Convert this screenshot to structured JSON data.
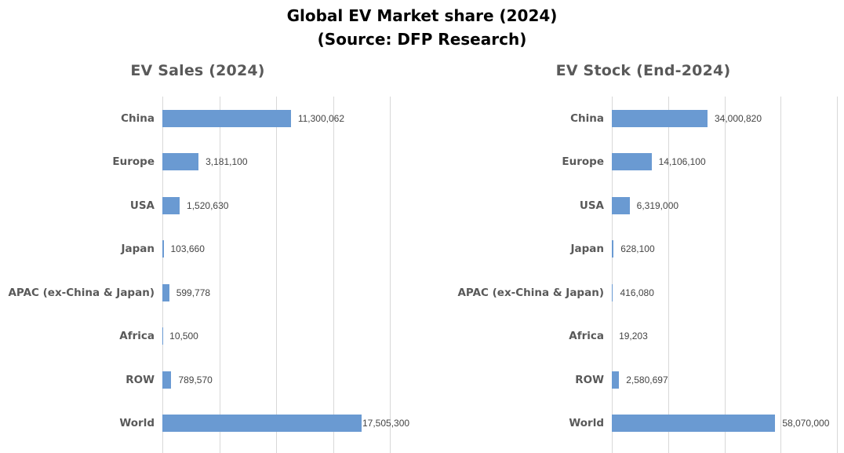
{
  "page_title": {
    "line1": "Global EV Market share (2024)",
    "line2": "(Source: DFP Research)"
  },
  "colors": {
    "background": "#FFFFFF",
    "main_title": "#000000",
    "chart_text_gray": "#595959",
    "value_label": "#444444",
    "bar": "#6A9AD2",
    "gridline": "#D8D8D8"
  },
  "chart_data": [
    {
      "type": "bar",
      "orientation": "horizontal",
      "title": "EV Sales (2024)",
      "categories": [
        "China",
        "Europe",
        "USA",
        "Japan",
        "APAC (ex-China & Japan)",
        "Africa",
        "ROW",
        "World"
      ],
      "values": [
        11300062,
        3181100,
        1520630,
        103660,
        599778,
        10500,
        789570,
        17505300
      ],
      "value_labels": [
        "11,300,062",
        "3,181,100",
        "1,520,630",
        "103,660",
        "599,778",
        "10,500",
        "789,570",
        "17,505,300"
      ],
      "xlim": [
        0,
        20000000
      ],
      "gridline_interval": 5000000,
      "grid": true,
      "legend": "none",
      "axis_tick_labels_visible": false
    },
    {
      "type": "bar",
      "orientation": "horizontal",
      "title": "EV Stock (End-2024)",
      "categories": [
        "China",
        "Europe",
        "USA",
        "Japan",
        "APAC (ex-China & Japan)",
        "Africa",
        "ROW",
        "World"
      ],
      "values": [
        34000820,
        14106100,
        6319000,
        628100,
        416080,
        19203,
        2580697,
        58070000
      ],
      "value_labels": [
        "34,000,820",
        "14,106,100",
        "6,319,000",
        "628,100",
        "416,080",
        "19,203",
        "2,580,697",
        "58,070,000"
      ],
      "xlim": [
        0,
        80000000
      ],
      "gridline_interval": 20000000,
      "grid": true,
      "legend": "none",
      "axis_tick_labels_visible": false
    }
  ]
}
